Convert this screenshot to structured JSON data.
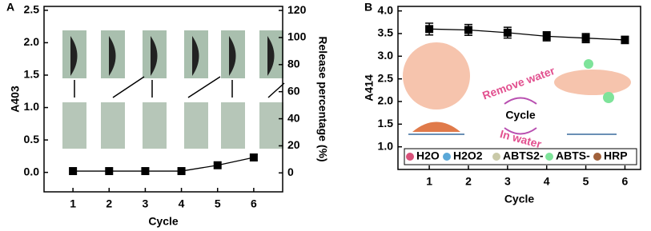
{
  "chart_data": [
    {
      "type": "line",
      "panel": "A",
      "xlabel": "Cycle",
      "ylabel": "A403",
      "y2label": "Release percentage (%)",
      "x": [
        1,
        2,
        3,
        4,
        5,
        6
      ],
      "xlim": [
        0.2,
        6.8
      ],
      "xticks": [
        1,
        2,
        3,
        4,
        5,
        6
      ],
      "ylim": [
        -0.3,
        2.56
      ],
      "yticks": [
        {
          "value": 0,
          "label": "0.0"
        },
        {
          "value": 0.5,
          "label": "0.5"
        },
        {
          "value": 1,
          "label": "1.0"
        },
        {
          "value": 1.5,
          "label": "1.5"
        },
        {
          "value": 2,
          "label": "2.0"
        },
        {
          "value": 2.5,
          "label": "2.5"
        }
      ],
      "y2lim": [
        -14,
        123
      ],
      "y2ticks": [
        0,
        20,
        40,
        60,
        80,
        100,
        120
      ],
      "series": [
        {
          "color": "#000000",
          "values": [
            0.02,
            0.02,
            0.02,
            0.02,
            0.11,
            0.23
          ]
        }
      ]
    },
    {
      "type": "line",
      "panel": "B",
      "xlabel": "Cycle",
      "ylabel": "A414",
      "x": [
        1,
        2,
        3,
        4,
        5,
        6
      ],
      "xlim": [
        0.2,
        6.4
      ],
      "xticks": [
        1,
        2,
        3,
        4,
        5,
        6
      ],
      "ylim": [
        0.5,
        4.1
      ],
      "yticks": [
        {
          "value": 1,
          "label": "1.0"
        },
        {
          "value": 1.5,
          "label": "1.5"
        },
        {
          "value": 2,
          "label": "2.0"
        },
        {
          "value": 2.5,
          "label": "2.5"
        },
        {
          "value": 3,
          "label": "3.0"
        },
        {
          "value": 3.5,
          "label": "3.5"
        },
        {
          "value": 4,
          "label": "4.0"
        }
      ],
      "series": [
        {
          "color": "#000000",
          "values": [
            3.6,
            3.58,
            3.52,
            3.44,
            3.4,
            3.36
          ],
          "errors": [
            0.13,
            0.12,
            0.12,
            0.1,
            0.1,
            0.08
          ]
        }
      ],
      "annotations": [
        "Remove water",
        "Cycle",
        "In water"
      ],
      "legend": [
        "H2O",
        "H2O2",
        "ABTS2-",
        "ABTS-",
        "HRP"
      ]
    }
  ]
}
